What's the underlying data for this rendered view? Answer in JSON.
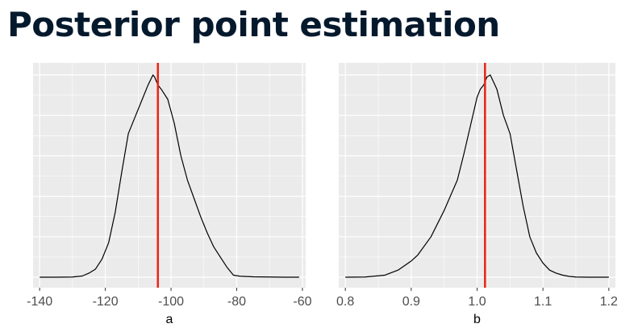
{
  "slide": {
    "title": "Posterior point estimation"
  },
  "colors": {
    "panel_background": "#ebebeb",
    "grid_major": "#ffffff",
    "density_line": "#000000",
    "estimate_line": "#e8291c",
    "title_text": "#05192d"
  },
  "chart_data": [
    {
      "type": "line",
      "title": "",
      "xlabel": "a",
      "ylabel": "",
      "xlim": [
        -142,
        -59
      ],
      "xticks": [
        -140,
        -120,
        -100,
        -80,
        -60
      ],
      "xtick_labels": [
        "-140",
        "-120",
        "-100",
        "-80",
        "-60"
      ],
      "y_ticks_shown": false,
      "grid": true,
      "point_estimate": -104,
      "series": [
        {
          "x": [
            -140,
            -135,
            -130,
            -127,
            -125,
            -123,
            -121,
            -119,
            -117,
            -115,
            -113,
            -111,
            -109,
            -107,
            -105.5,
            -105,
            -104,
            -103,
            -101,
            -99,
            -97,
            -95,
            -93,
            -91,
            -89,
            -87,
            -85,
            -83,
            -81,
            -79,
            -75,
            -70,
            -65,
            -61
          ],
          "y": [
            0.0,
            0.0,
            0.001,
            0.006,
            0.02,
            0.04,
            0.09,
            0.17,
            0.32,
            0.52,
            0.71,
            0.79,
            0.87,
            0.95,
            1.0,
            0.99,
            0.95,
            0.93,
            0.88,
            0.76,
            0.6,
            0.48,
            0.39,
            0.3,
            0.22,
            0.15,
            0.1,
            0.05,
            0.01,
            0.005,
            0.002,
            0.001,
            0.0,
            0.0
          ]
        }
      ]
    },
    {
      "type": "line",
      "title": "",
      "xlabel": "b",
      "ylabel": "",
      "xlim": [
        0.79,
        1.21
      ],
      "xticks": [
        0.8,
        0.9,
        1.0,
        1.1,
        1.2
      ],
      "xtick_labels": [
        "0.8",
        "0.9",
        "1.0",
        "1.1",
        "1.2"
      ],
      "y_ticks_shown": false,
      "grid": true,
      "point_estimate": 1.012,
      "series": [
        {
          "x": [
            0.8,
            0.83,
            0.86,
            0.88,
            0.9,
            0.91,
            0.93,
            0.95,
            0.97,
            0.98,
            0.99,
            1.0,
            1.005,
            1.01,
            1.015,
            1.02,
            1.03,
            1.04,
            1.05,
            1.06,
            1.07,
            1.08,
            1.09,
            1.1,
            1.11,
            1.12,
            1.13,
            1.14,
            1.15,
            1.17,
            1.2
          ],
          "y": [
            0.0,
            0.001,
            0.01,
            0.035,
            0.08,
            0.11,
            0.2,
            0.33,
            0.48,
            0.61,
            0.75,
            0.89,
            0.93,
            0.95,
            0.99,
            1.0,
            0.93,
            0.8,
            0.71,
            0.53,
            0.35,
            0.2,
            0.12,
            0.07,
            0.035,
            0.02,
            0.01,
            0.004,
            0.001,
            0.0,
            0.0
          ]
        }
      ]
    }
  ]
}
